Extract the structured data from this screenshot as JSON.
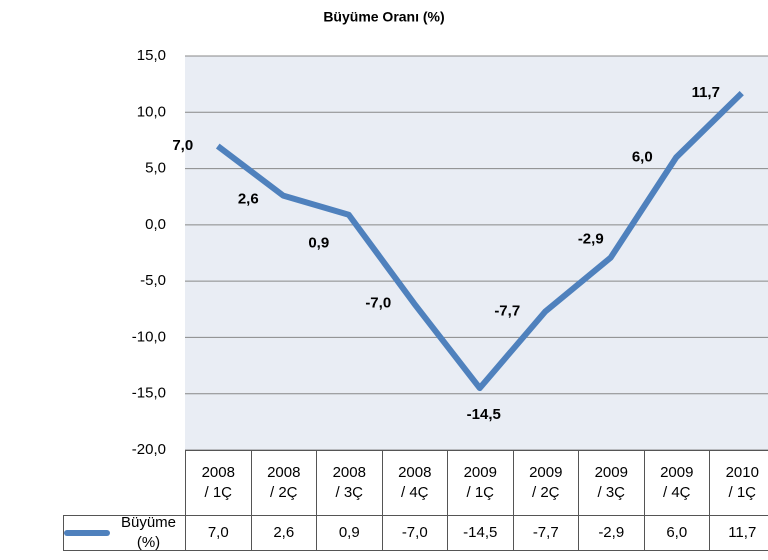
{
  "chart_data": {
    "type": "line",
    "title": "Büyüme Oranı (%)",
    "categories": [
      "2008\n/ 1Ç",
      "2008\n/ 2Ç",
      "2008\n/ 3Ç",
      "2008\n/ 4Ç",
      "2009\n/ 1Ç",
      "2009\n/ 2Ç",
      "2009\n/ 3Ç",
      "2009\n/ 4Ç",
      "2010\n/ 1Ç"
    ],
    "series": [
      {
        "name": "Büyüme (%)",
        "color": "#4f81bd",
        "values": [
          7.0,
          2.6,
          0.9,
          -7.0,
          -14.5,
          -7.7,
          -2.9,
          6.0,
          11.7
        ],
        "value_labels": [
          "7,0",
          "2,6",
          "0,9",
          "-7,0",
          "-14,5",
          "-7,7",
          "-2,9",
          "6,0",
          "11,7"
        ]
      }
    ],
    "ylim": [
      -20,
      15
    ],
    "yticks": [
      {
        "value": -20,
        "label": "-20,0"
      },
      {
        "value": -15,
        "label": "-15,0"
      },
      {
        "value": -10,
        "label": "-10,0"
      },
      {
        "value": -5,
        "label": "-5,0"
      },
      {
        "value": 0,
        "label": "0,0"
      },
      {
        "value": 5,
        "label": "5,0"
      },
      {
        "value": 10,
        "label": "10,0"
      },
      {
        "value": 15,
        "label": "15,0"
      }
    ],
    "grid": true,
    "data_table": true
  }
}
